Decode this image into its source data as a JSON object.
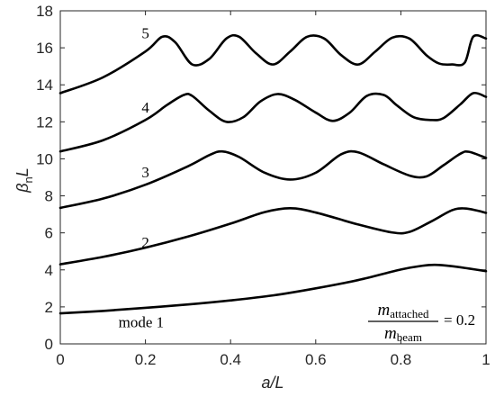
{
  "chart_data": {
    "type": "line",
    "xlabel": "a/L",
    "ylabel": {
      "base": "β",
      "sub": "n",
      "tail": "L"
    },
    "xlim": [
      0,
      1
    ],
    "ylim": [
      0,
      18
    ],
    "xticks": [
      "0",
      "0.2",
      "0.4",
      "0.6",
      "0.8",
      "1"
    ],
    "yticks": [
      "0",
      "2",
      "4",
      "6",
      "8",
      "10",
      "12",
      "14",
      "16",
      "18"
    ],
    "grid": false,
    "annotation": {
      "numerator": "m",
      "numerator_sub": "attached",
      "denominator": "m",
      "denominator_sub": "beam",
      "value": "= 0.2"
    },
    "series": [
      {
        "name": "mode 1",
        "x": [
          0,
          0.1,
          0.2,
          0.3,
          0.4,
          0.5,
          0.6,
          0.7,
          0.8,
          0.85,
          0.88,
          0.92,
          0.96,
          1.0
        ],
        "y": [
          1.65,
          1.78,
          1.95,
          2.13,
          2.35,
          2.62,
          3.0,
          3.45,
          4.02,
          4.22,
          4.27,
          4.2,
          4.07,
          3.93
        ]
      },
      {
        "name": "2",
        "x": [
          0,
          0.1,
          0.2,
          0.3,
          0.4,
          0.48,
          0.54,
          0.6,
          0.7,
          0.78,
          0.82,
          0.87,
          0.92,
          0.95,
          0.98,
          1.0
        ],
        "y": [
          4.3,
          4.7,
          5.2,
          5.8,
          6.5,
          7.12,
          7.33,
          7.1,
          6.45,
          6.02,
          6.05,
          6.6,
          7.22,
          7.32,
          7.2,
          7.08
        ]
      },
      {
        "name": "3",
        "x": [
          0,
          0.1,
          0.2,
          0.3,
          0.35,
          0.38,
          0.42,
          0.48,
          0.54,
          0.6,
          0.66,
          0.7,
          0.76,
          0.82,
          0.86,
          0.9,
          0.94,
          0.96,
          1.0
        ],
        "y": [
          7.35,
          7.85,
          8.6,
          9.6,
          10.2,
          10.4,
          10.1,
          9.25,
          8.88,
          9.25,
          10.25,
          10.35,
          9.7,
          9.1,
          9.05,
          9.65,
          10.28,
          10.38,
          10.05
        ]
      },
      {
        "name": "4",
        "x": [
          0,
          0.1,
          0.2,
          0.25,
          0.29,
          0.31,
          0.35,
          0.39,
          0.43,
          0.47,
          0.51,
          0.55,
          0.6,
          0.64,
          0.68,
          0.72,
          0.76,
          0.79,
          0.83,
          0.87,
          0.9,
          0.94,
          0.97,
          1.0
        ],
        "y": [
          10.4,
          11.0,
          12.1,
          12.9,
          13.45,
          13.4,
          12.6,
          12.0,
          12.25,
          13.1,
          13.5,
          13.2,
          12.5,
          12.05,
          12.5,
          13.4,
          13.45,
          12.9,
          12.25,
          12.1,
          12.2,
          12.95,
          13.55,
          13.35
        ]
      },
      {
        "name": "5",
        "x": [
          0,
          0.1,
          0.2,
          0.24,
          0.27,
          0.31,
          0.35,
          0.39,
          0.42,
          0.46,
          0.5,
          0.54,
          0.58,
          0.62,
          0.66,
          0.7,
          0.74,
          0.78,
          0.82,
          0.86,
          0.89,
          0.92,
          0.95,
          0.97,
          1.0
        ],
        "y": [
          13.55,
          14.4,
          15.8,
          16.6,
          16.3,
          15.1,
          15.4,
          16.5,
          16.6,
          15.7,
          15.1,
          15.8,
          16.6,
          16.5,
          15.6,
          15.1,
          15.8,
          16.55,
          16.5,
          15.6,
          15.15,
          15.1,
          15.2,
          16.6,
          16.5
        ]
      }
    ]
  }
}
